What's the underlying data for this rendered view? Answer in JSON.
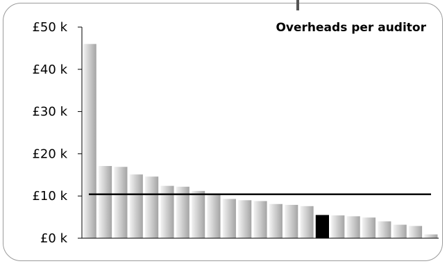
{
  "chart_data": {
    "type": "bar",
    "title": "Overheads per auditor",
    "xlabel": "",
    "ylabel": "",
    "ylim": [
      0,
      50000
    ],
    "y_tick_values": [
      0,
      10000,
      20000,
      30000,
      40000,
      50000
    ],
    "y_tick_labels": [
      "£0 k",
      "£10 k",
      "£20 k",
      "£30 k",
      "£40 k",
      "£50 k"
    ],
    "values": [
      46000,
      17100,
      16900,
      15100,
      14600,
      12400,
      12200,
      11200,
      10200,
      9300,
      9000,
      8800,
      8100,
      7900,
      7600,
      5500,
      5400,
      5200,
      4900,
      4000,
      3200,
      2900,
      900
    ],
    "highlight_index": 15,
    "reference_line": 10400,
    "grid": false,
    "colors": {
      "bar_light": "#f3f3f3",
      "bar_dark": "#a4a4a4",
      "highlight": "#000000",
      "reference_line": "#000000"
    }
  }
}
